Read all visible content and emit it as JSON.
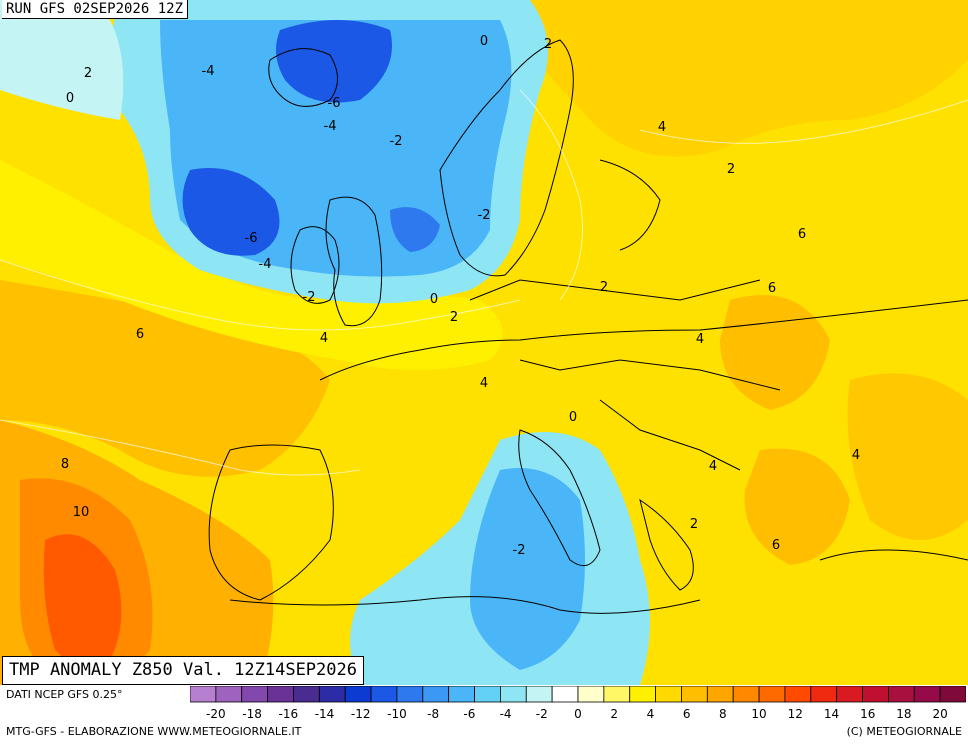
{
  "run_label": "RUN GFS 02SEP2026 12Z",
  "title": "TMP ANOMALY Z850 Val. 12Z14SEP2026",
  "source": "DATI NCEP GFS 0.25°",
  "credit_left": "MTG-GFS - ELABORAZIONE WWW.METEOGIORNALE.IT",
  "credit_right": "(C) METEOGIORNALE",
  "legend": {
    "ticks": [
      "-20",
      "-18",
      "-16",
      "-14",
      "-12",
      "-10",
      "-8",
      "-6",
      "-4",
      "-2",
      "0",
      "2",
      "4",
      "6",
      "8",
      "10",
      "12",
      "14",
      "16",
      "18",
      "20"
    ],
    "colors": [
      "#b77fcf",
      "#9d63bf",
      "#8348ad",
      "#6a3296",
      "#4a2b8f",
      "#2c2ca6",
      "#0b3bd0",
      "#1b58e6",
      "#2f79ef",
      "#3b98f5",
      "#4bb6f7",
      "#63d1f5",
      "#8ee5f3",
      "#c5f4f4",
      "#ffffff",
      "#ffffcc",
      "#fff766",
      "#fff000",
      "#ffd900",
      "#ffbf00",
      "#ffa500",
      "#ff8800",
      "#ff6a00",
      "#ff4a00",
      "#f02a10",
      "#d91a20",
      "#c01030",
      "#a81040",
      "#960a4a",
      "#7f0a3a"
    ]
  },
  "labels": [
    {
      "text": "2"
    },
    {
      "text": "0"
    },
    {
      "text": "-4"
    },
    {
      "text": "-6"
    },
    {
      "text": "-4"
    },
    {
      "text": "-2"
    },
    {
      "text": "0"
    },
    {
      "text": "2"
    },
    {
      "text": "4"
    },
    {
      "text": "2"
    },
    {
      "text": "6"
    },
    {
      "text": "-2"
    },
    {
      "text": "-6"
    },
    {
      "text": "-4"
    },
    {
      "text": "-2"
    },
    {
      "text": "0"
    },
    {
      "text": "2"
    },
    {
      "text": "2"
    },
    {
      "text": "6"
    },
    {
      "text": "6"
    },
    {
      "text": "4"
    },
    {
      "text": "4"
    },
    {
      "text": "4"
    },
    {
      "text": "0"
    },
    {
      "text": "4"
    },
    {
      "text": "4"
    },
    {
      "text": "8"
    },
    {
      "text": "10"
    },
    {
      "text": "2"
    },
    {
      "text": "6"
    },
    {
      "text": "-2"
    }
  ]
}
